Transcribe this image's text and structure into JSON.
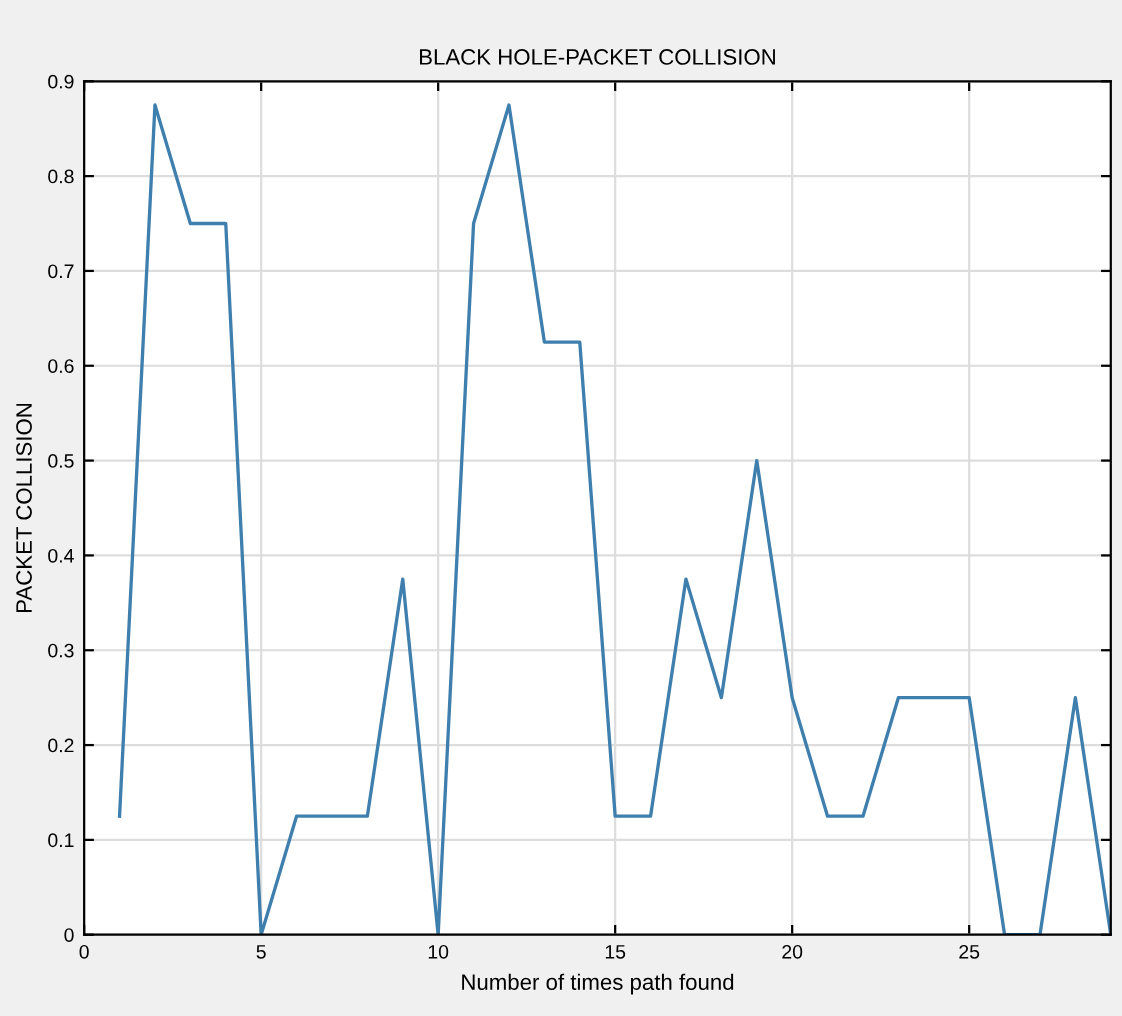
{
  "chart_data": {
    "type": "line",
    "title": "BLACK HOLE-PACKET COLLISION",
    "xlabel": "Number of times path found",
    "ylabel": "PACKET COLLISION",
    "x": [
      1,
      2,
      3,
      4,
      5,
      6,
      7,
      8,
      9,
      10,
      11,
      12,
      13,
      14,
      15,
      16,
      17,
      18,
      19,
      20,
      21,
      22,
      23,
      24,
      25,
      26,
      27,
      28,
      29
    ],
    "series": [
      {
        "color": "#3f7fae",
        "values": [
          0.125,
          0.875,
          0.75,
          0.75,
          0,
          0.125,
          0.125,
          0.125,
          0.375,
          0,
          0.75,
          0.875,
          0.625,
          0.625,
          0.125,
          0.125,
          0.375,
          0.25,
          0.5,
          0.25,
          0.125,
          0.125,
          0.25,
          0.25,
          0.25,
          0,
          0,
          0.25,
          0
        ]
      }
    ],
    "xlim": [
      0,
      29
    ],
    "xticks": [
      0,
      5,
      10,
      15,
      20,
      25
    ],
    "ylim": [
      0,
      0.9
    ],
    "yticks": [
      0,
      0.1,
      0.2,
      0.3,
      0.4,
      0.5,
      0.6,
      0.7,
      0.8,
      0.9
    ],
    "grid": true,
    "marker": "none",
    "line_style": "solid"
  }
}
